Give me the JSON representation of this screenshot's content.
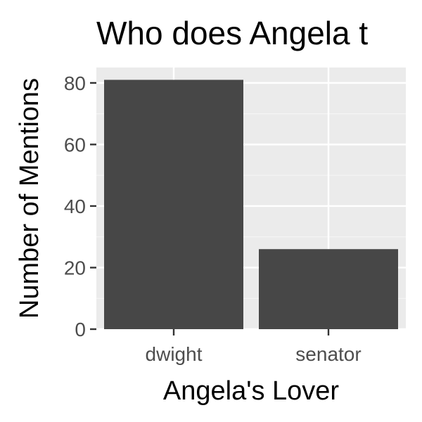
{
  "chart_data": {
    "type": "bar",
    "title": "Who does Angela t",
    "xlabel": "Angela's Lover",
    "ylabel": "Number of Mentions",
    "categories": [
      "dwight",
      "senator"
    ],
    "values": [
      81,
      26
    ],
    "ylim": [
      0,
      85
    ],
    "yticks": [
      0,
      20,
      40,
      60,
      80
    ],
    "ytick_labels": [
      "0",
      "20",
      "40",
      "60",
      "80"
    ],
    "grid": true,
    "legend": "none",
    "colors": {
      "bar": "#474747",
      "panel_background": "#ebebeb",
      "grid_major": "#ffffff",
      "grid_minor": "#f5f5f5",
      "tick": "#333333",
      "tick_label": "#4d4d4d",
      "text": "#000000"
    }
  }
}
